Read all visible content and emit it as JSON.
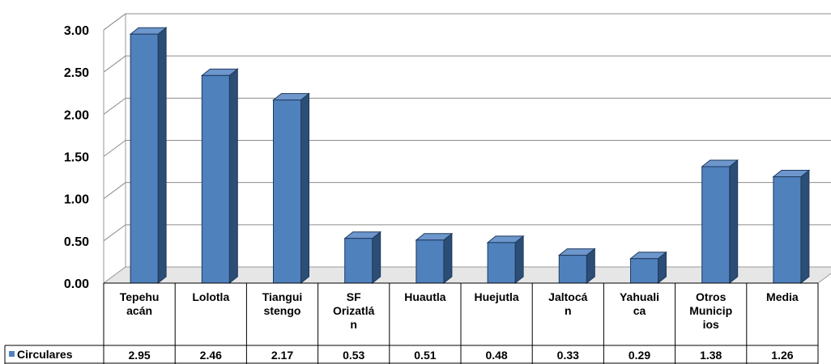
{
  "chart_data": {
    "type": "bar",
    "categories": [
      [
        "Tepehu",
        "acán"
      ],
      [
        "Lolotla"
      ],
      [
        "Tiangui",
        "stengo"
      ],
      [
        "SF",
        "Orizatlá",
        "n"
      ],
      [
        "Huautla"
      ],
      [
        "Huejutla"
      ],
      [
        "Jaltocá",
        "n"
      ],
      [
        "Yahuali",
        "ca"
      ],
      [
        "Otros",
        "Municip",
        "ios"
      ],
      [
        "Media"
      ]
    ],
    "series": [
      {
        "name": "Circulares",
        "values": [
          2.95,
          2.46,
          2.17,
          0.53,
          0.51,
          0.48,
          0.33,
          0.29,
          1.38,
          1.26
        ],
        "labels": [
          "2.95",
          "2.46",
          "2.17",
          "0.53",
          "0.51",
          "0.48",
          "0.33",
          "0.29",
          "1.38",
          "1.26"
        ]
      }
    ],
    "yticks": [
      "0.00",
      "0.50",
      "1.00",
      "1.50",
      "2.00",
      "2.50",
      "3.00"
    ],
    "ylim": [
      0,
      3.0
    ],
    "grid": true,
    "legend": "data-table",
    "colors": {
      "front": "#4F81BD",
      "side": "#2C4D75",
      "top": "#6D96CC"
    }
  }
}
